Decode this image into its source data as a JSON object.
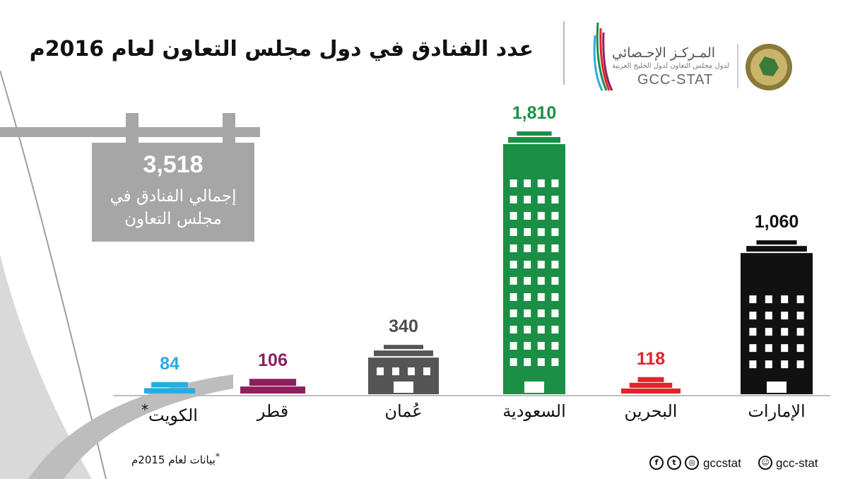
{
  "header": {
    "title": "عدد الفنادق في دول مجلس التعاون لعام 2016م",
    "logo_ar": "المـركـز الإحـصائي",
    "logo_sub": "لدول مجلس التعاون لدول الخليج العربية",
    "logo_en": "GCC-STAT"
  },
  "sign": {
    "total": "3,518",
    "label_line1": "إجمالي الفنادق في",
    "label_line2": "مجلس التعاون"
  },
  "footer": {
    "footnote": "بيانات لعام 2015م",
    "footnote_mark": "*",
    "social_left": "gccstat",
    "social_right": "gcc-stat",
    "icons": [
      "facebook-icon",
      "twitter-icon",
      "instagram-icon",
      "snapchat-icon"
    ]
  },
  "chart_data": {
    "type": "bar",
    "title": "عدد الفنادق في دول مجلس التعاون لعام 2016م",
    "categories": [
      "الكويت",
      "قطر",
      "عُمان",
      "السعودية",
      "البحرين",
      "الإمارات"
    ],
    "category_marks": [
      "*",
      "",
      "",
      "",
      "",
      ""
    ],
    "values": [
      84,
      106,
      340,
      1810,
      118,
      1060
    ],
    "value_labels": [
      "84",
      "106",
      "340",
      "1,810",
      "118",
      "1,060"
    ],
    "colors": [
      "#29abe2",
      "#8e1f5e",
      "#555555",
      "#1b8f45",
      "#e3232b",
      "#111111"
    ],
    "total": 3518
  }
}
